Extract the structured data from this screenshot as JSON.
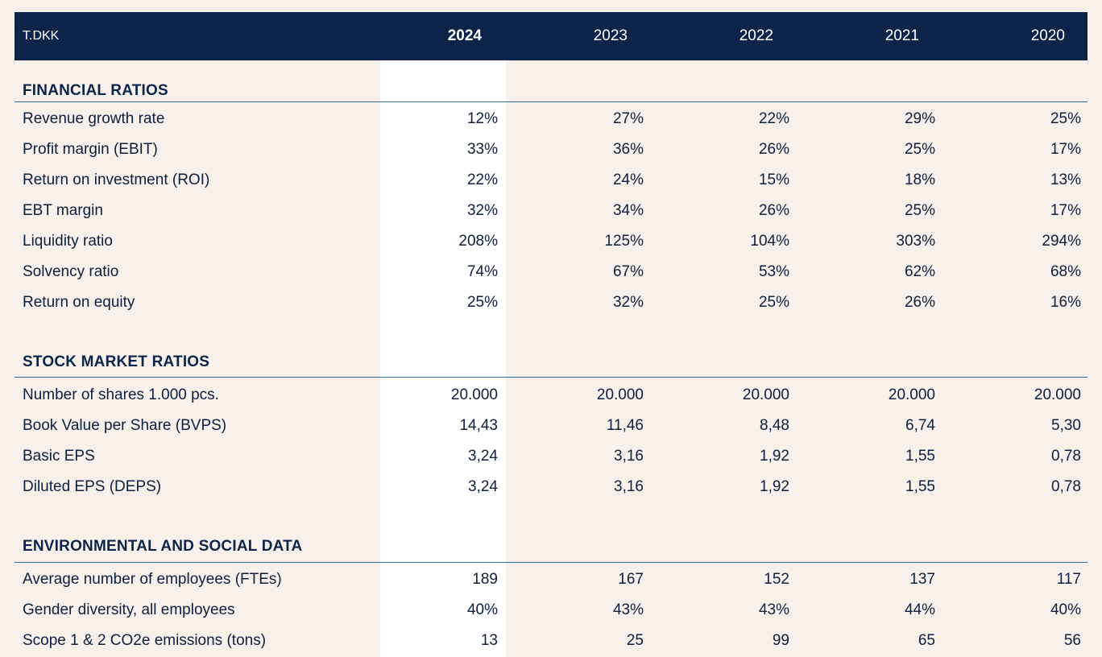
{
  "header": {
    "unit": "T.DKK",
    "years": [
      "2024",
      "2023",
      "2022",
      "2021",
      "2020"
    ]
  },
  "sections": [
    {
      "title": "FINANCIAL RATIOS",
      "rows": [
        {
          "label": "Revenue growth rate",
          "values": [
            "12%",
            "27%",
            "22%",
            "29%",
            "25%"
          ]
        },
        {
          "label": "Profit margin (EBIT)",
          "values": [
            "33%",
            "36%",
            "26%",
            "25%",
            "17%"
          ]
        },
        {
          "label": "Return on investment (ROI)",
          "values": [
            "22%",
            "24%",
            "15%",
            "18%",
            "13%"
          ]
        },
        {
          "label": "EBT margin",
          "values": [
            "32%",
            "34%",
            "26%",
            "25%",
            "17%"
          ]
        },
        {
          "label": "Liquidity ratio",
          "values": [
            "208%",
            "125%",
            "104%",
            "303%",
            "294%"
          ]
        },
        {
          "label": "Solvency ratio",
          "values": [
            "74%",
            "67%",
            "53%",
            "62%",
            "68%"
          ]
        },
        {
          "label": "Return on equity",
          "values": [
            "25%",
            "32%",
            "25%",
            "26%",
            "16%"
          ]
        }
      ]
    },
    {
      "title": "STOCK MARKET RATIOS",
      "rows": [
        {
          "label": "Number of shares 1.000 pcs.",
          "values": [
            "20.000",
            "20.000",
            "20.000",
            "20.000",
            "20.000"
          ]
        },
        {
          "label": "Book Value per Share (BVPS)",
          "values": [
            "14,43",
            "11,46",
            "8,48",
            "6,74",
            "5,30"
          ]
        },
        {
          "label": "Basic EPS",
          "values": [
            "3,24",
            "3,16",
            "1,92",
            "1,55",
            "0,78"
          ]
        },
        {
          "label": "Diluted EPS (DEPS)",
          "values": [
            "3,24",
            "3,16",
            "1,92",
            "1,55",
            "0,78"
          ]
        }
      ]
    },
    {
      "title": "ENVIRONMENTAL AND SOCIAL DATA",
      "rows": [
        {
          "label": "Average number of employees (FTEs)",
          "values": [
            "189",
            "167",
            "152",
            "137",
            "117"
          ]
        },
        {
          "label": "Gender diversity, all employees",
          "values": [
            "40%",
            "43%",
            "43%",
            "44%",
            "40%"
          ]
        },
        {
          "label": "Scope 1 & 2 CO2e emissions (tons)",
          "values": [
            "13",
            "25",
            "99",
            "65",
            "56"
          ]
        }
      ]
    }
  ]
}
